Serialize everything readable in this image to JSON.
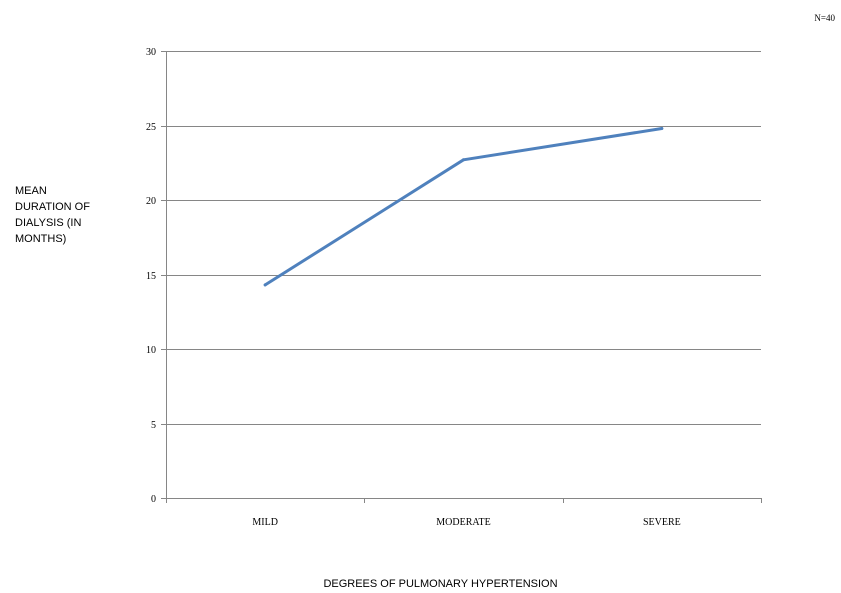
{
  "chart_data": {
    "type": "line",
    "annotation": "N=40",
    "ylabel_lines": [
      "MEAN",
      "DURATION OF",
      "DIALYSIS (IN",
      "MONTHS)"
    ],
    "xlabel": "DEGREES OF PULMONARY HYPERTENSION",
    "categories": [
      "MILD",
      "MODERATE",
      "SEVERE"
    ],
    "series": [
      {
        "values": [
          14.3,
          22.7,
          24.8
        ],
        "color": "#4f81bd"
      }
    ],
    "ylim": [
      0,
      30
    ],
    "yticks": [
      0,
      5,
      10,
      15,
      20,
      25,
      30
    ],
    "grid": true,
    "legend": "none"
  }
}
